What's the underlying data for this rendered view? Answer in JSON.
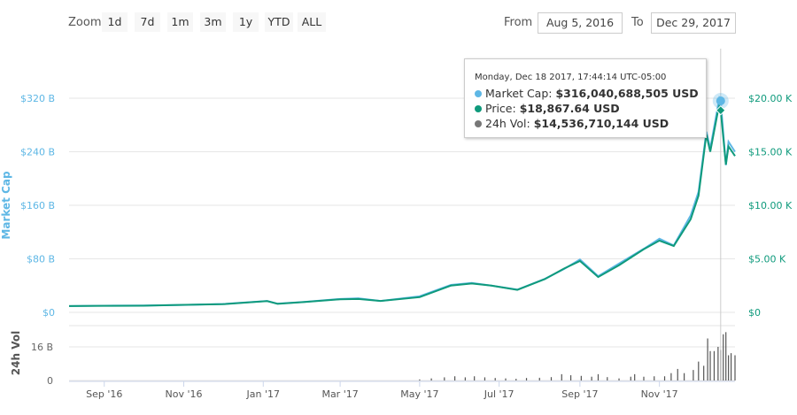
{
  "toolbar": {
    "zoom_label": "Zoom",
    "zoom_buttons": [
      "1d",
      "7d",
      "1m",
      "3m",
      "1y",
      "YTD",
      "ALL"
    ],
    "from_label": "From",
    "from_value": "Aug 5, 2016",
    "to_label": "To",
    "to_value": "Dec 29, 2017"
  },
  "tooltip": {
    "title": "Monday, Dec 18 2017, 17:44:14 UTC-05:00",
    "rows": [
      {
        "label": "Market Cap: ",
        "value": "$316,040,688,505 USD",
        "color": "#5eb7e5"
      },
      {
        "label": "Price: ",
        "value": "$18,867.64 USD",
        "color": "#0f9a7c"
      },
      {
        "label": "24h Vol: ",
        "value": "$14,536,710,144 USD",
        "color": "#777777"
      }
    ]
  },
  "chart_data": {
    "type": "line",
    "title": "",
    "xrange": [
      "2016-08-05",
      "2017-12-29"
    ],
    "x_ticks": [
      {
        "date": "2016-09-01",
        "label": "Sep '16"
      },
      {
        "date": "2016-11-01",
        "label": "Nov '16"
      },
      {
        "date": "2017-01-01",
        "label": "Jan '17"
      },
      {
        "date": "2017-03-01",
        "label": "Mar '17"
      },
      {
        "date": "2017-05-01",
        "label": "May '17"
      },
      {
        "date": "2017-07-01",
        "label": "Jul '17"
      },
      {
        "date": "2017-09-01",
        "label": "Sep '17"
      },
      {
        "date": "2017-11-01",
        "label": "Nov '17"
      }
    ],
    "left_axis": {
      "label": "Market Cap",
      "ylim": [
        0,
        320
      ],
      "unit": "B USD",
      "ticks": [
        {
          "v": 0,
          "label": "$0"
        },
        {
          "v": 80,
          "label": "$80 B"
        },
        {
          "v": 160,
          "label": "$160 B"
        },
        {
          "v": 240,
          "label": "$240 B"
        },
        {
          "v": 320,
          "label": "$320 B"
        }
      ]
    },
    "right_axis": {
      "label": "Price",
      "ylim": [
        0,
        20000
      ],
      "ticks": [
        {
          "v": 0,
          "label": "$0"
        },
        {
          "v": 5000,
          "label": "$5.00 K"
        },
        {
          "v": 10000,
          "label": "$10.00 K"
        },
        {
          "v": 15000,
          "label": "$15.00 K"
        },
        {
          "v": 20000,
          "label": "$20.00 K"
        }
      ]
    },
    "volume_axis": {
      "label": "24h Vol",
      "ylim": [
        0,
        24
      ],
      "unit": "B USD",
      "ticks": [
        {
          "v": 0,
          "label": "0"
        },
        {
          "v": 16,
          "label": "16 B"
        }
      ]
    },
    "series": [
      {
        "name": "Market Cap",
        "color": "#5eb7e5",
        "unit": "B USD",
        "points": [
          [
            "2016-08-05",
            9.5
          ],
          [
            "2016-09-01",
            10
          ],
          [
            "2016-10-01",
            10.3
          ],
          [
            "2016-11-01",
            11
          ],
          [
            "2016-12-01",
            12.5
          ],
          [
            "2017-01-04",
            17
          ],
          [
            "2017-01-12",
            13
          ],
          [
            "2017-02-01",
            15.5
          ],
          [
            "2017-03-01",
            20
          ],
          [
            "2017-03-15",
            21
          ],
          [
            "2017-04-01",
            17
          ],
          [
            "2017-05-01",
            24
          ],
          [
            "2017-05-25",
            41
          ],
          [
            "2017-06-10",
            44
          ],
          [
            "2017-06-25",
            40
          ],
          [
            "2017-07-15",
            34
          ],
          [
            "2017-08-05",
            50
          ],
          [
            "2017-08-20",
            65
          ],
          [
            "2017-09-01",
            79
          ],
          [
            "2017-09-15",
            54
          ],
          [
            "2017-10-01",
            73
          ],
          [
            "2017-10-20",
            95
          ],
          [
            "2017-11-01",
            110
          ],
          [
            "2017-11-12",
            100
          ],
          [
            "2017-11-25",
            145
          ],
          [
            "2017-12-01",
            180
          ],
          [
            "2017-12-07",
            270
          ],
          [
            "2017-12-10",
            245
          ],
          [
            "2017-12-17",
            320
          ],
          [
            "2017-12-18",
            316
          ],
          [
            "2017-12-22",
            220
          ],
          [
            "2017-12-24",
            255
          ],
          [
            "2017-12-29",
            240
          ]
        ]
      },
      {
        "name": "Price",
        "color": "#0f9a7c",
        "unit": "USD",
        "points": [
          [
            "2016-08-05",
            590
          ],
          [
            "2016-09-01",
            610
          ],
          [
            "2016-10-01",
            620
          ],
          [
            "2016-11-01",
            700
          ],
          [
            "2016-12-01",
            760
          ],
          [
            "2017-01-04",
            1050
          ],
          [
            "2017-01-12",
            800
          ],
          [
            "2017-02-01",
            960
          ],
          [
            "2017-03-01",
            1220
          ],
          [
            "2017-03-15",
            1250
          ],
          [
            "2017-04-01",
            1060
          ],
          [
            "2017-05-01",
            1420
          ],
          [
            "2017-05-25",
            2500
          ],
          [
            "2017-06-10",
            2700
          ],
          [
            "2017-06-25",
            2500
          ],
          [
            "2017-07-15",
            2100
          ],
          [
            "2017-08-05",
            3100
          ],
          [
            "2017-08-20",
            4100
          ],
          [
            "2017-09-01",
            4800
          ],
          [
            "2017-09-15",
            3300
          ],
          [
            "2017-10-01",
            4400
          ],
          [
            "2017-10-20",
            5900
          ],
          [
            "2017-11-01",
            6700
          ],
          [
            "2017-11-12",
            6200
          ],
          [
            "2017-11-25",
            8700
          ],
          [
            "2017-12-01",
            10900
          ],
          [
            "2017-12-07",
            16600
          ],
          [
            "2017-12-10",
            15000
          ],
          [
            "2017-12-17",
            19500
          ],
          [
            "2017-12-18",
            18867.64
          ],
          [
            "2017-12-22",
            13800
          ],
          [
            "2017-12-24",
            15500
          ],
          [
            "2017-12-29",
            14600
          ]
        ]
      }
    ],
    "volume": {
      "name": "24h Vol",
      "color": "#555555",
      "points": [
        [
          "2017-05-01",
          0.5
        ],
        [
          "2017-05-10",
          1
        ],
        [
          "2017-05-20",
          1.5
        ],
        [
          "2017-05-28",
          2
        ],
        [
          "2017-06-05",
          1.5
        ],
        [
          "2017-06-12",
          2
        ],
        [
          "2017-06-20",
          1.5
        ],
        [
          "2017-06-28",
          1.2
        ],
        [
          "2017-07-06",
          1
        ],
        [
          "2017-07-14",
          0.8
        ],
        [
          "2017-07-22",
          1.2
        ],
        [
          "2017-08-01",
          1.3
        ],
        [
          "2017-08-10",
          1.6
        ],
        [
          "2017-08-18",
          3
        ],
        [
          "2017-08-25",
          2.5
        ],
        [
          "2017-09-02",
          2.2
        ],
        [
          "2017-09-10",
          1.8
        ],
        [
          "2017-09-15",
          3
        ],
        [
          "2017-09-22",
          1.6
        ],
        [
          "2017-10-01",
          1
        ],
        [
          "2017-10-10",
          1.8
        ],
        [
          "2017-10-13",
          3
        ],
        [
          "2017-10-20",
          1.8
        ],
        [
          "2017-10-28",
          2
        ],
        [
          "2017-11-05",
          2
        ],
        [
          "2017-11-10",
          3.5
        ],
        [
          "2017-11-15",
          5.5
        ],
        [
          "2017-11-20",
          3.5
        ],
        [
          "2017-11-27",
          5
        ],
        [
          "2017-12-01",
          9
        ],
        [
          "2017-12-05",
          7
        ],
        [
          "2017-12-08",
          20
        ],
        [
          "2017-12-10",
          14
        ],
        [
          "2017-12-13",
          14
        ],
        [
          "2017-12-16",
          16
        ],
        [
          "2017-12-18",
          14.5
        ],
        [
          "2017-12-20",
          22
        ],
        [
          "2017-12-22",
          23
        ],
        [
          "2017-12-24",
          12
        ],
        [
          "2017-12-26",
          13
        ],
        [
          "2017-12-29",
          12
        ]
      ]
    },
    "highlight": {
      "date": "2017-12-18",
      "market_cap": 316,
      "price": 18867.64
    }
  }
}
